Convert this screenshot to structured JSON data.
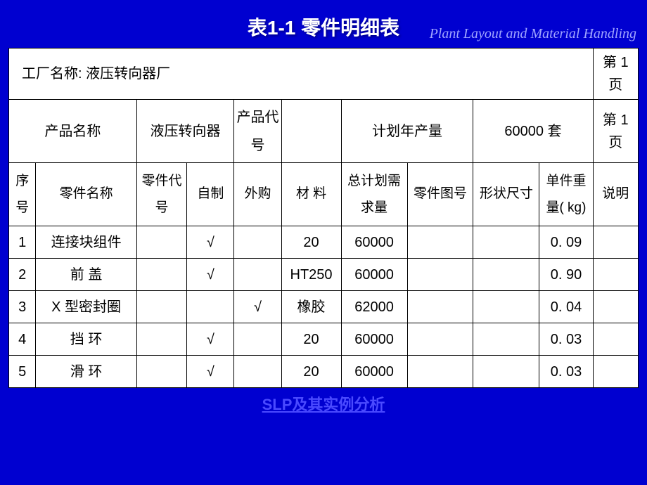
{
  "title": "表1-1  零件明细表",
  "subtitle": "Plant Layout and Material Handling",
  "footer": "SLP及其实例分析",
  "colors": {
    "page_bg": "#0000d0",
    "table_bg": "#ffffff",
    "border": "#000000",
    "title_text": "#ffffff",
    "subtitle_text": "#9fa4ff",
    "cell_text": "#000000",
    "footer_text": "#4a4aff"
  },
  "typography": {
    "title_fontsize": 28,
    "subtitle_fontsize": 20,
    "cell_fontsize": 20,
    "footer_fontsize": 22
  },
  "factory_row": {
    "label": "工厂名称:   液压转向器厂",
    "page": "第 1 页"
  },
  "product_row": {
    "c1": "产品名称",
    "c2": "液压转向器",
    "c3": "产品代号",
    "c4": "",
    "c5": "计划年产量",
    "c6": "60000 套",
    "c7": "第 1 页"
  },
  "headers": {
    "seq": "序号",
    "part_name": "零件名称",
    "part_code": "零件代号",
    "self_made": "自制",
    "purchased": "外购",
    "material": "材   料",
    "total_demand": "总计划需求量",
    "drawing_no": "零件图号",
    "shape_size": "形状尺寸",
    "unit_weight": "单件重量( kg)",
    "remark": "说明"
  },
  "rows": [
    {
      "seq": "1",
      "part_name": "连接块组件",
      "part_code": "",
      "self_made": "√",
      "purchased": "",
      "material": "20",
      "total_demand": "60000",
      "drawing_no": "",
      "shape_size": "",
      "unit_weight": "0. 09",
      "remark": ""
    },
    {
      "seq": "2",
      "part_name": "前   盖",
      "part_code": "",
      "self_made": "√",
      "purchased": "",
      "material": "HT250",
      "total_demand": "60000",
      "drawing_no": "",
      "shape_size": "",
      "unit_weight": "0. 90",
      "remark": ""
    },
    {
      "seq": "3",
      "part_name": "X 型密封圈",
      "part_code": "",
      "self_made": "",
      "purchased": "√",
      "material": "橡胶",
      "total_demand": "62000",
      "drawing_no": "",
      "shape_size": "",
      "unit_weight": "0. 04",
      "remark": ""
    },
    {
      "seq": "4",
      "part_name": "挡   环",
      "part_code": "",
      "self_made": "√",
      "purchased": "",
      "material": "20",
      "total_demand": "60000",
      "drawing_no": "",
      "shape_size": "",
      "unit_weight": "0. 03",
      "remark": ""
    },
    {
      "seq": "5",
      "part_name": "滑   环",
      "part_code": "",
      "self_made": "√",
      "purchased": "",
      "material": "20",
      "total_demand": "60000",
      "drawing_no": "",
      "shape_size": "",
      "unit_weight": "0. 03",
      "remark": ""
    }
  ],
  "column_widths_pct": [
    4.3,
    16.0,
    8.0,
    7.5,
    7.5,
    9.5,
    10.5,
    10.5,
    10.5,
    8.5,
    7.2
  ]
}
